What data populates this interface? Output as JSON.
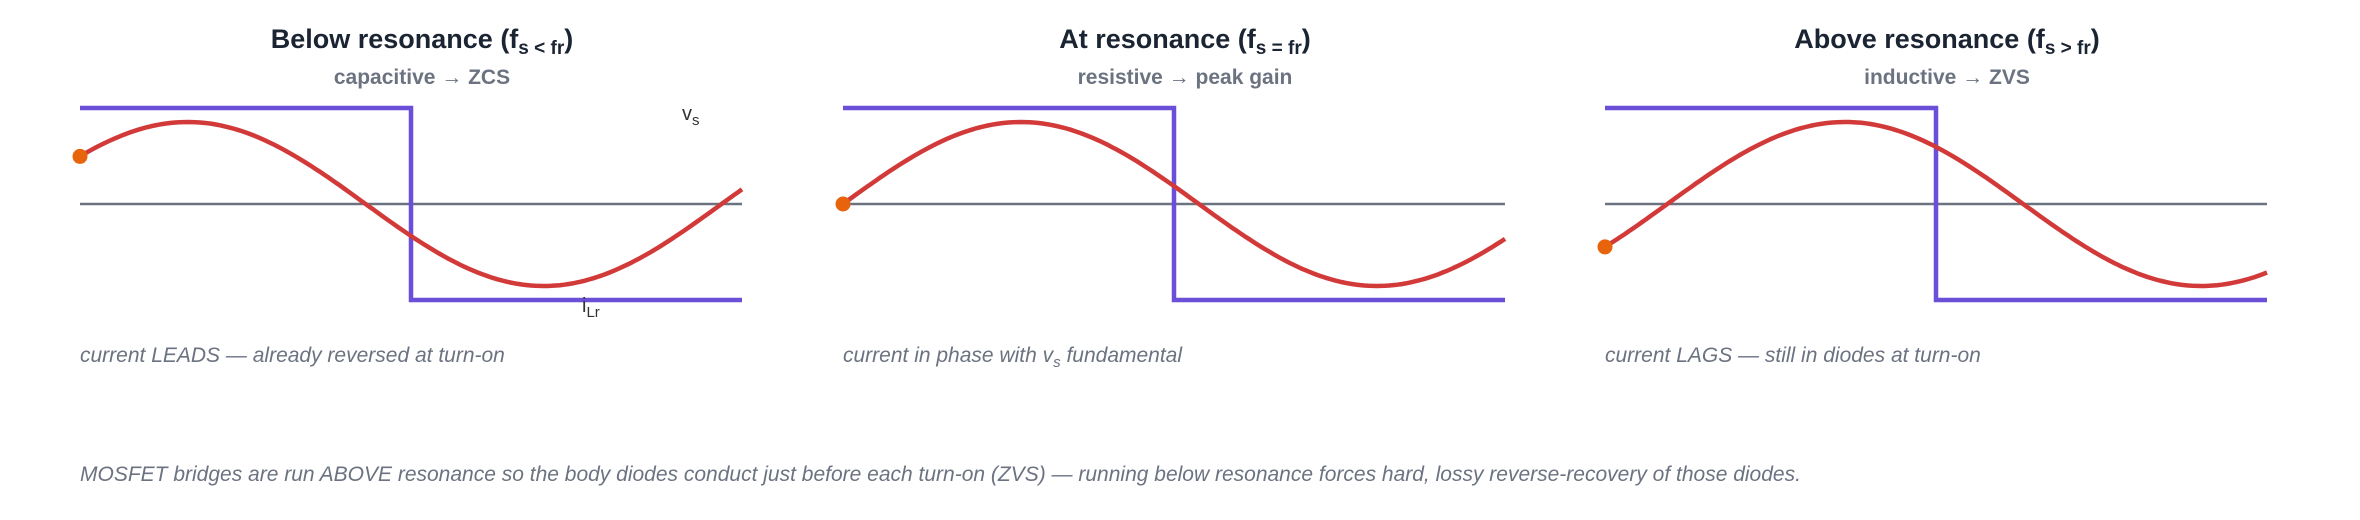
{
  "panels": [
    {
      "title_prefix": "Below resonance (f",
      "title_sub": "s < fr",
      "title_suffix": ")",
      "subtitle": "capacitive → ZCS",
      "caption_main": "current LEADS — already reversed at turn-on",
      "caption_sub": "",
      "caption_tail": "",
      "phase": "leads"
    },
    {
      "title_prefix": "At resonance (f",
      "title_sub": "s = fr",
      "title_suffix": ")",
      "subtitle": "resistive → peak gain",
      "caption_main": "current in phase with v",
      "caption_sub": "s",
      "caption_tail": " fundamental",
      "phase": "in-phase"
    },
    {
      "title_prefix": "Above resonance (f",
      "title_sub": "s > fr",
      "title_suffix": ")",
      "subtitle": "inductive → ZVS",
      "caption_main": "current LAGS — still in diodes at turn-on",
      "caption_sub": "",
      "caption_tail": "",
      "phase": "lags"
    }
  ],
  "labels": {
    "vs_main": "v",
    "vs_sub": "s",
    "ilr_main": "i",
    "ilr_sub": "Lr"
  },
  "footer": "MOSFET bridges are run ABOVE resonance so the body diodes conduct just before each turn-on (ZVS) — running below resonance forces hard, lossy reverse-recovery of those diodes.",
  "colors": {
    "square_wave": "#6c4fd8",
    "current": "#d23a3a",
    "axis": "#6b7280",
    "turn_on_dot": "#e8640c"
  }
}
